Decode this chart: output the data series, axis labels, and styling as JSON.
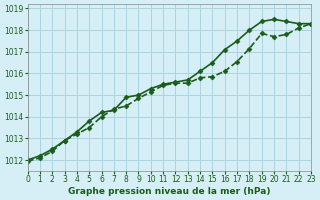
{
  "title": "Graphe pression niveau de la mer (hPa)",
  "bg_color": "#d6eff7",
  "grid_color": "#aad4e0",
  "line_color": "#1a5c1a",
  "xlim": [
    0,
    23
  ],
  "ylim": [
    1011.5,
    1019.2
  ],
  "yticks": [
    1012,
    1013,
    1014,
    1015,
    1016,
    1017,
    1018,
    1019
  ],
  "xticks": [
    0,
    1,
    2,
    3,
    4,
    5,
    6,
    7,
    8,
    9,
    10,
    11,
    12,
    13,
    14,
    15,
    16,
    17,
    18,
    19,
    20,
    21,
    22,
    23
  ],
  "series1_x": [
    0,
    1,
    2,
    3,
    4,
    5,
    6,
    7,
    8,
    9,
    10,
    11,
    12,
    13,
    14,
    15,
    16,
    17,
    18,
    19,
    20,
    21,
    22,
    23
  ],
  "series1_y": [
    1012.0,
    1012.2,
    1012.5,
    1012.9,
    1013.3,
    1013.8,
    1014.2,
    1014.3,
    1014.9,
    1015.0,
    1015.3,
    1015.5,
    1015.6,
    1015.7,
    1016.1,
    1016.5,
    1017.1,
    1017.5,
    1018.0,
    1018.4,
    1018.5,
    1018.4,
    1018.3,
    1018.3
  ],
  "series2_x": [
    0,
    1,
    2,
    3,
    4,
    5,
    6,
    7,
    8,
    9,
    10,
    11,
    12,
    13,
    14,
    15,
    16,
    17,
    18,
    19,
    20,
    21,
    22,
    23
  ],
  "series2_y": [
    1011.95,
    1012.1,
    1012.4,
    1012.9,
    1013.2,
    1013.5,
    1014.0,
    1014.35,
    1014.5,
    1014.85,
    1015.15,
    1015.45,
    1015.55,
    1015.55,
    1015.8,
    1015.85,
    1016.1,
    1016.55,
    1017.15,
    1017.85,
    1017.7,
    1017.8,
    1018.1,
    1018.3
  ],
  "marker": "D",
  "marker_size": 2.5,
  "linewidth": 1.2
}
